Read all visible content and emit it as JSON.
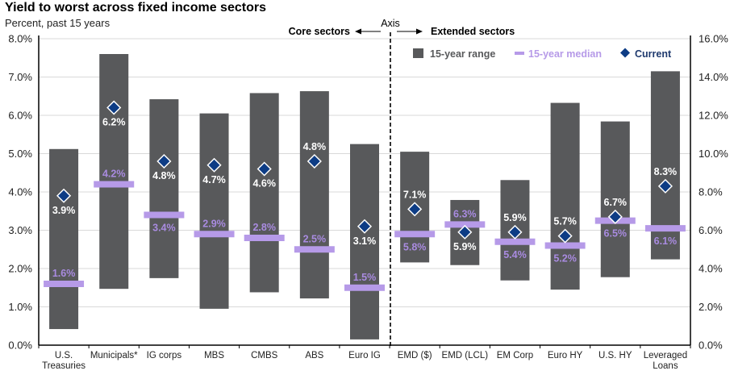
{
  "chart_data": {
    "type": "bar",
    "subtype": "floating-range with median and current markers",
    "title": "Yield to worst across fixed income sectors",
    "subtitle": "Percent, past 15 years",
    "categories": [
      "U.S.\nTreasuries",
      "Municipals*",
      "IG corps",
      "MBS",
      "CMBS",
      "ABS",
      "Euro IG",
      "EMD ($)",
      "EMD (LCL)",
      "EM Corp",
      "Euro HY",
      "U.S. HY",
      "Leveraged\nLoans"
    ],
    "axis_assignment": [
      "left",
      "left",
      "left",
      "left",
      "left",
      "left",
      "left",
      "right",
      "right",
      "right",
      "right",
      "right",
      "right"
    ],
    "series": [
      {
        "name": "15-year range",
        "low": [
          0.42,
          1.47,
          1.75,
          0.95,
          1.38,
          1.22,
          0.15,
          4.32,
          4.18,
          3.38,
          2.9,
          3.55,
          4.48
        ],
        "high": [
          5.12,
          7.6,
          6.42,
          6.05,
          6.58,
          6.63,
          5.25,
          10.1,
          7.58,
          8.62,
          12.65,
          11.68,
          14.3
        ]
      },
      {
        "name": "15-year median",
        "values": [
          1.6,
          4.2,
          3.4,
          2.9,
          2.8,
          2.5,
          1.5,
          5.8,
          6.3,
          5.4,
          5.2,
          6.5,
          6.1
        ]
      },
      {
        "name": "Current",
        "values": [
          3.9,
          6.2,
          4.8,
          4.7,
          4.6,
          4.8,
          3.1,
          7.1,
          5.9,
          5.9,
          5.7,
          6.7,
          8.3
        ]
      }
    ],
    "median_labels": [
      "1.6%",
      "4.2%",
      "3.4%",
      "2.9%",
      "2.8%",
      "2.5%",
      "1.5%",
      "5.8%",
      "6.3%",
      "5.4%",
      "5.2%",
      "6.5%",
      "6.1%"
    ],
    "current_labels": [
      "3.9%",
      "6.2%",
      "4.8%",
      "4.7%",
      "4.6%",
      "4.8%",
      "3.1%",
      "7.1%",
      "5.9%",
      "5.9%",
      "5.7%",
      "6.7%",
      "8.3%"
    ],
    "left_axis": {
      "ylim": [
        0,
        8
      ],
      "ticks": [
        "0.0%",
        "1.0%",
        "2.0%",
        "3.0%",
        "4.0%",
        "5.0%",
        "6.0%",
        "7.0%",
        "8.0%"
      ]
    },
    "right_axis": {
      "ylim": [
        0,
        16
      ],
      "ticks": [
        "0.0%",
        "2.0%",
        "4.0%",
        "6.0%",
        "8.0%",
        "10.0%",
        "12.0%",
        "14.0%",
        "16.0%"
      ]
    },
    "annotations": {
      "core": "Core sectors",
      "axis": "Axis",
      "extended": "Extended sectors"
    },
    "legend": {
      "placement": "top-right",
      "entries": [
        "15-year range",
        "15-year median",
        "Current"
      ]
    },
    "grid": true,
    "colors": {
      "range": "#58595b",
      "median": "#b69ae8",
      "median_text": "#a98be0",
      "current": "#0d3c85",
      "current_text": "#ffffff",
      "legend_current_text": "#1f3a6e"
    }
  }
}
